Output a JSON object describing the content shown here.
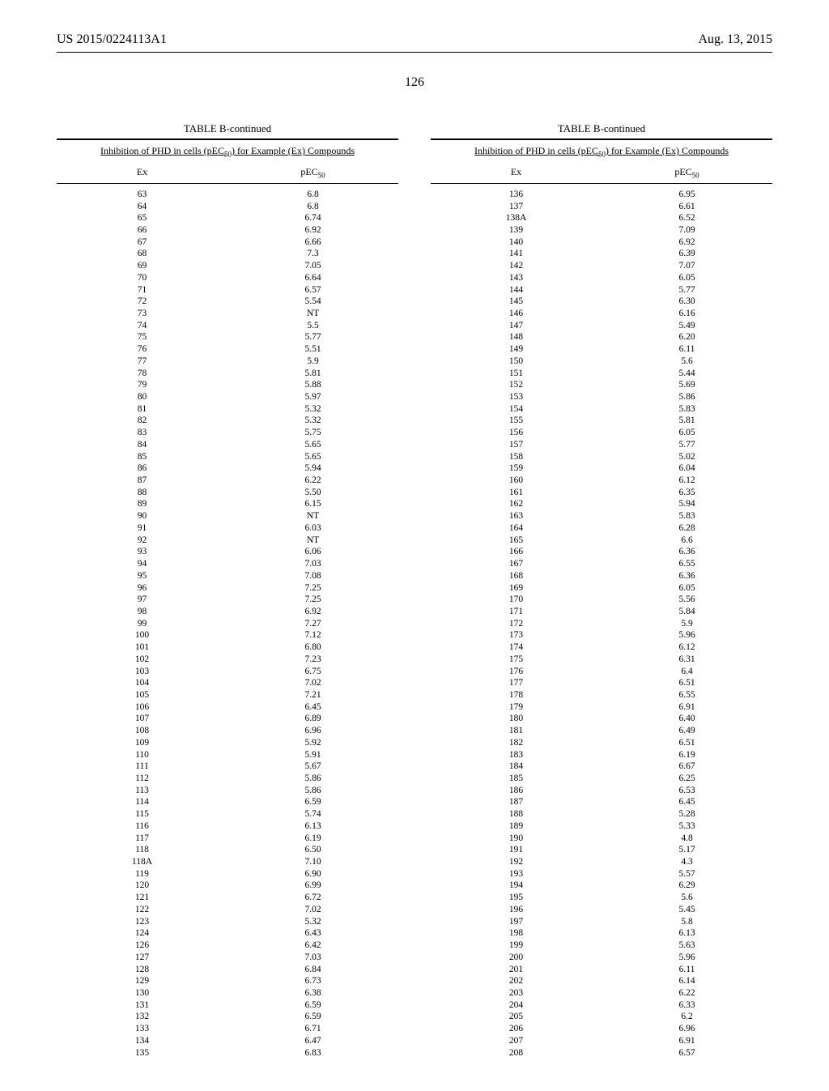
{
  "header": {
    "pub_number": "US 2015/0224113A1",
    "pub_date": "Aug. 13, 2015"
  },
  "page_number": "126",
  "table": {
    "title": "TABLE B-continued",
    "caption_prefix": "Inhibition of PHD in cells (pEC",
    "caption_sub": "50",
    "caption_suffix": ") for Example (Ex) Compounds",
    "col_ex": "Ex",
    "col_val_prefix": "pEC",
    "col_val_sub": "50"
  },
  "left_rows": [
    {
      "ex": "63",
      "v": "6.8"
    },
    {
      "ex": "64",
      "v": "6.8"
    },
    {
      "ex": "65",
      "v": "6.74"
    },
    {
      "ex": "66",
      "v": "6.92"
    },
    {
      "ex": "67",
      "v": "6.66"
    },
    {
      "ex": "68",
      "v": "7.3"
    },
    {
      "ex": "69",
      "v": "7.05"
    },
    {
      "ex": "70",
      "v": "6.64"
    },
    {
      "ex": "71",
      "v": "6.57"
    },
    {
      "ex": "72",
      "v": "5.54"
    },
    {
      "ex": "73",
      "v": "NT"
    },
    {
      "ex": "74",
      "v": "5.5"
    },
    {
      "ex": "75",
      "v": "5.77"
    },
    {
      "ex": "76",
      "v": "5.51"
    },
    {
      "ex": "77",
      "v": "5.9"
    },
    {
      "ex": "78",
      "v": "5.81"
    },
    {
      "ex": "79",
      "v": "5.88"
    },
    {
      "ex": "80",
      "v": "5.97"
    },
    {
      "ex": "81",
      "v": "5.32"
    },
    {
      "ex": "82",
      "v": "5.32"
    },
    {
      "ex": "83",
      "v": "5.75"
    },
    {
      "ex": "84",
      "v": "5.65"
    },
    {
      "ex": "85",
      "v": "5.65"
    },
    {
      "ex": "86",
      "v": "5.94"
    },
    {
      "ex": "87",
      "v": "6.22"
    },
    {
      "ex": "88",
      "v": "5.50"
    },
    {
      "ex": "89",
      "v": "6.15"
    },
    {
      "ex": "90",
      "v": "NT"
    },
    {
      "ex": "91",
      "v": "6.03"
    },
    {
      "ex": "92",
      "v": "NT"
    },
    {
      "ex": "93",
      "v": "6.06"
    },
    {
      "ex": "94",
      "v": "7.03"
    },
    {
      "ex": "95",
      "v": "7.08"
    },
    {
      "ex": "96",
      "v": "7.25"
    },
    {
      "ex": "97",
      "v": "7.25"
    },
    {
      "ex": "98",
      "v": "6.92"
    },
    {
      "ex": "99",
      "v": "7.27"
    },
    {
      "ex": "100",
      "v": "7.12"
    },
    {
      "ex": "101",
      "v": "6.80"
    },
    {
      "ex": "102",
      "v": "7.23"
    },
    {
      "ex": "103",
      "v": "6.75"
    },
    {
      "ex": "104",
      "v": "7.02"
    },
    {
      "ex": "105",
      "v": "7.21"
    },
    {
      "ex": "106",
      "v": "6.45"
    },
    {
      "ex": "107",
      "v": "6.89"
    },
    {
      "ex": "108",
      "v": "6.96"
    },
    {
      "ex": "109",
      "v": "5.92"
    },
    {
      "ex": "110",
      "v": "5.91"
    },
    {
      "ex": "111",
      "v": "5.67"
    },
    {
      "ex": "112",
      "v": "5.86"
    },
    {
      "ex": "113",
      "v": "5.86"
    },
    {
      "ex": "114",
      "v": "6.59"
    },
    {
      "ex": "115",
      "v": "5.74"
    },
    {
      "ex": "116",
      "v": "6.13"
    },
    {
      "ex": "117",
      "v": "6.19"
    },
    {
      "ex": "118",
      "v": "6.50"
    },
    {
      "ex": "118A",
      "v": "7.10"
    },
    {
      "ex": "119",
      "v": "6.90"
    },
    {
      "ex": "120",
      "v": "6.99"
    },
    {
      "ex": "121",
      "v": "6.72"
    },
    {
      "ex": "122",
      "v": "7.02"
    },
    {
      "ex": "123",
      "v": "5.32"
    },
    {
      "ex": "124",
      "v": "6.43"
    },
    {
      "ex": "126",
      "v": "6.42"
    },
    {
      "ex": "127",
      "v": "7.03"
    },
    {
      "ex": "128",
      "v": "6.84"
    },
    {
      "ex": "129",
      "v": "6.73"
    },
    {
      "ex": "130",
      "v": "6.38"
    },
    {
      "ex": "131",
      "v": "6.59"
    },
    {
      "ex": "132",
      "v": "6.59"
    },
    {
      "ex": "133",
      "v": "6.71"
    },
    {
      "ex": "134",
      "v": "6.47"
    },
    {
      "ex": "135",
      "v": "6.83"
    }
  ],
  "right_rows": [
    {
      "ex": "136",
      "v": "6.95"
    },
    {
      "ex": "137",
      "v": "6.61"
    },
    {
      "ex": "138A",
      "v": "6.52"
    },
    {
      "ex": "139",
      "v": "7.09"
    },
    {
      "ex": "140",
      "v": "6.92"
    },
    {
      "ex": "141",
      "v": "6.39"
    },
    {
      "ex": "142",
      "v": "7.07"
    },
    {
      "ex": "143",
      "v": "6.05"
    },
    {
      "ex": "144",
      "v": "5.77"
    },
    {
      "ex": "145",
      "v": "6.30"
    },
    {
      "ex": "146",
      "v": "6.16"
    },
    {
      "ex": "147",
      "v": "5.49"
    },
    {
      "ex": "148",
      "v": "6.20"
    },
    {
      "ex": "149",
      "v": "6.11"
    },
    {
      "ex": "150",
      "v": "5.6"
    },
    {
      "ex": "151",
      "v": "5.44"
    },
    {
      "ex": "152",
      "v": "5.69"
    },
    {
      "ex": "153",
      "v": "5.86"
    },
    {
      "ex": "154",
      "v": "5.83"
    },
    {
      "ex": "155",
      "v": "5.81"
    },
    {
      "ex": "156",
      "v": "6.05"
    },
    {
      "ex": "157",
      "v": "5.77"
    },
    {
      "ex": "158",
      "v": "5.02"
    },
    {
      "ex": "159",
      "v": "6.04"
    },
    {
      "ex": "160",
      "v": "6.12"
    },
    {
      "ex": "161",
      "v": "6.35"
    },
    {
      "ex": "162",
      "v": "5.94"
    },
    {
      "ex": "163",
      "v": "5.83"
    },
    {
      "ex": "164",
      "v": "6.28"
    },
    {
      "ex": "165",
      "v": "6.6"
    },
    {
      "ex": "166",
      "v": "6.36"
    },
    {
      "ex": "167",
      "v": "6.55"
    },
    {
      "ex": "168",
      "v": "6.36"
    },
    {
      "ex": "169",
      "v": "6.05"
    },
    {
      "ex": "170",
      "v": "5.56"
    },
    {
      "ex": "171",
      "v": "5.84"
    },
    {
      "ex": "172",
      "v": "5.9"
    },
    {
      "ex": "173",
      "v": "5.96"
    },
    {
      "ex": "174",
      "v": "6.12"
    },
    {
      "ex": "175",
      "v": "6.31"
    },
    {
      "ex": "176",
      "v": "6.4"
    },
    {
      "ex": "177",
      "v": "6.51"
    },
    {
      "ex": "178",
      "v": "6.55"
    },
    {
      "ex": "179",
      "v": "6.91"
    },
    {
      "ex": "180",
      "v": "6.40"
    },
    {
      "ex": "181",
      "v": "6.49"
    },
    {
      "ex": "182",
      "v": "6.51"
    },
    {
      "ex": "183",
      "v": "6.19"
    },
    {
      "ex": "184",
      "v": "6.67"
    },
    {
      "ex": "185",
      "v": "6.25"
    },
    {
      "ex": "186",
      "v": "6.53"
    },
    {
      "ex": "187",
      "v": "6.45"
    },
    {
      "ex": "188",
      "v": "5.28"
    },
    {
      "ex": "189",
      "v": "5.33"
    },
    {
      "ex": "190",
      "v": "4.8"
    },
    {
      "ex": "191",
      "v": "5.17"
    },
    {
      "ex": "192",
      "v": "4.3"
    },
    {
      "ex": "193",
      "v": "5.57"
    },
    {
      "ex": "194",
      "v": "6.29"
    },
    {
      "ex": "195",
      "v": "5.6"
    },
    {
      "ex": "196",
      "v": "5.45"
    },
    {
      "ex": "197",
      "v": "5.8"
    },
    {
      "ex": "198",
      "v": "6.13"
    },
    {
      "ex": "199",
      "v": "5.63"
    },
    {
      "ex": "200",
      "v": "5.96"
    },
    {
      "ex": "201",
      "v": "6.11"
    },
    {
      "ex": "202",
      "v": "6.14"
    },
    {
      "ex": "203",
      "v": "6.22"
    },
    {
      "ex": "204",
      "v": "6.33"
    },
    {
      "ex": "205",
      "v": "6.2"
    },
    {
      "ex": "206",
      "v": "6.96"
    },
    {
      "ex": "207",
      "v": "6.91"
    },
    {
      "ex": "208",
      "v": "6.57"
    }
  ]
}
